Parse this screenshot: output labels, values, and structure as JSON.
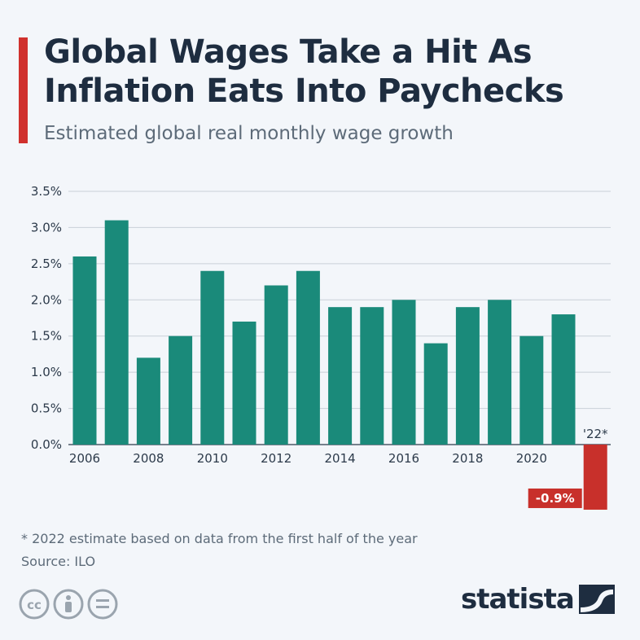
{
  "title": "Global Wages Take a Hit As Inflation Eats Into Paychecks",
  "subtitle": "Estimated global real monthly wage growth",
  "footnote": "* 2022 estimate based on data from the first half of the year",
  "source": "Source: ILO",
  "brand": "statista",
  "colors": {
    "bar": "#1a8a7a",
    "negative_bar": "#c8302b",
    "accent": "#d0312d",
    "grid": "#c9d0d8",
    "text": "#1e2d40"
  },
  "chart_data": {
    "type": "bar",
    "categories": [
      "2006",
      "2007",
      "2008",
      "2009",
      "2010",
      "2011",
      "2012",
      "2013",
      "2014",
      "2015",
      "2016",
      "2017",
      "2018",
      "2019",
      "2020",
      "2021",
      "'22*"
    ],
    "x_tick_labels": [
      "2006",
      "2008",
      "2010",
      "2012",
      "2014",
      "2016",
      "2018",
      "2020",
      "'22*"
    ],
    "values": [
      2.6,
      3.1,
      1.2,
      1.5,
      2.4,
      1.7,
      2.2,
      2.4,
      1.9,
      1.9,
      2.0,
      1.4,
      1.9,
      2.0,
      1.5,
      1.8,
      -0.9
    ],
    "y_tick_labels": [
      "0.0%",
      "0.5%",
      "1.0%",
      "1.5%",
      "2.0%",
      "2.5%",
      "3.0%",
      "3.5%"
    ],
    "ylim": [
      -0.9,
      3.5
    ],
    "data_labels": [
      {
        "category": "'22*",
        "text": "-0.9%"
      }
    ],
    "grid": true,
    "legend": false
  }
}
